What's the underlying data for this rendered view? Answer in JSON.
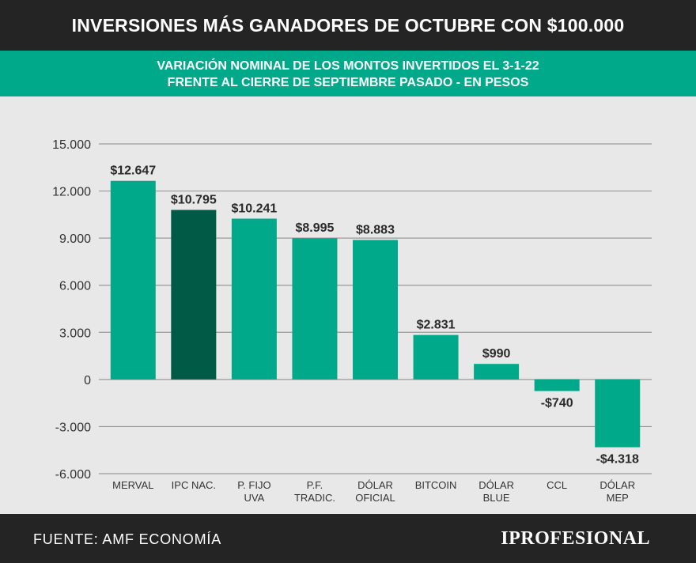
{
  "header": {
    "title": "INVERSIONES MÁS GANADORES DE OCTUBRE CON $100.000",
    "subtitle_line1": "VARIACIÓN NOMINAL DE LOS MONTOS INVERTIDOS EL 3-1-22",
    "subtitle_line2": "FRENTE AL CIERRE DE SEPTIEMBRE PASADO - EN PESOS"
  },
  "footer": {
    "source": "FUENTE: AMF ECONOMÍA",
    "logo": "IPROFESIONAL"
  },
  "colors": {
    "bar": "#00a98a",
    "bar_highlight": "#005a45",
    "header_bg": "#242424",
    "subtitle_bg": "#00a98a",
    "plot_bg": "#e8e8e8",
    "grid": "#9a9a9a"
  },
  "chart_data": {
    "type": "bar",
    "categories": [
      [
        "MERVAL"
      ],
      [
        "IPC NAC."
      ],
      [
        "P. FIJO",
        "UVA"
      ],
      [
        "P.F.",
        "TRADIC."
      ],
      [
        "DÓLAR",
        "OFICIAL"
      ],
      [
        "BITCOIN"
      ],
      [
        "DÓLAR",
        "BLUE"
      ],
      [
        "CCL"
      ],
      [
        "DÓLAR",
        "MEP"
      ]
    ],
    "values": [
      12647,
      10795,
      10241,
      8995,
      8883,
      2831,
      990,
      -740,
      -4318
    ],
    "data_labels": [
      "$12.647",
      "$10.795",
      "$10.241",
      "$8.995",
      "$8.883",
      "$2.831",
      "$990",
      "-$740",
      "-$4.318"
    ],
    "highlight_index": 1,
    "ylim": [
      -6000,
      15000
    ],
    "yticks": [
      15000,
      12000,
      9000,
      6000,
      3000,
      0,
      -3000,
      -6000
    ],
    "ytick_labels": [
      "15.000",
      "12.000",
      "9.000",
      "6.000",
      "3.000",
      "0",
      "-3.000",
      "-6.000"
    ],
    "grid": true,
    "legend": "none",
    "title": "",
    "xlabel": "",
    "ylabel": ""
  }
}
